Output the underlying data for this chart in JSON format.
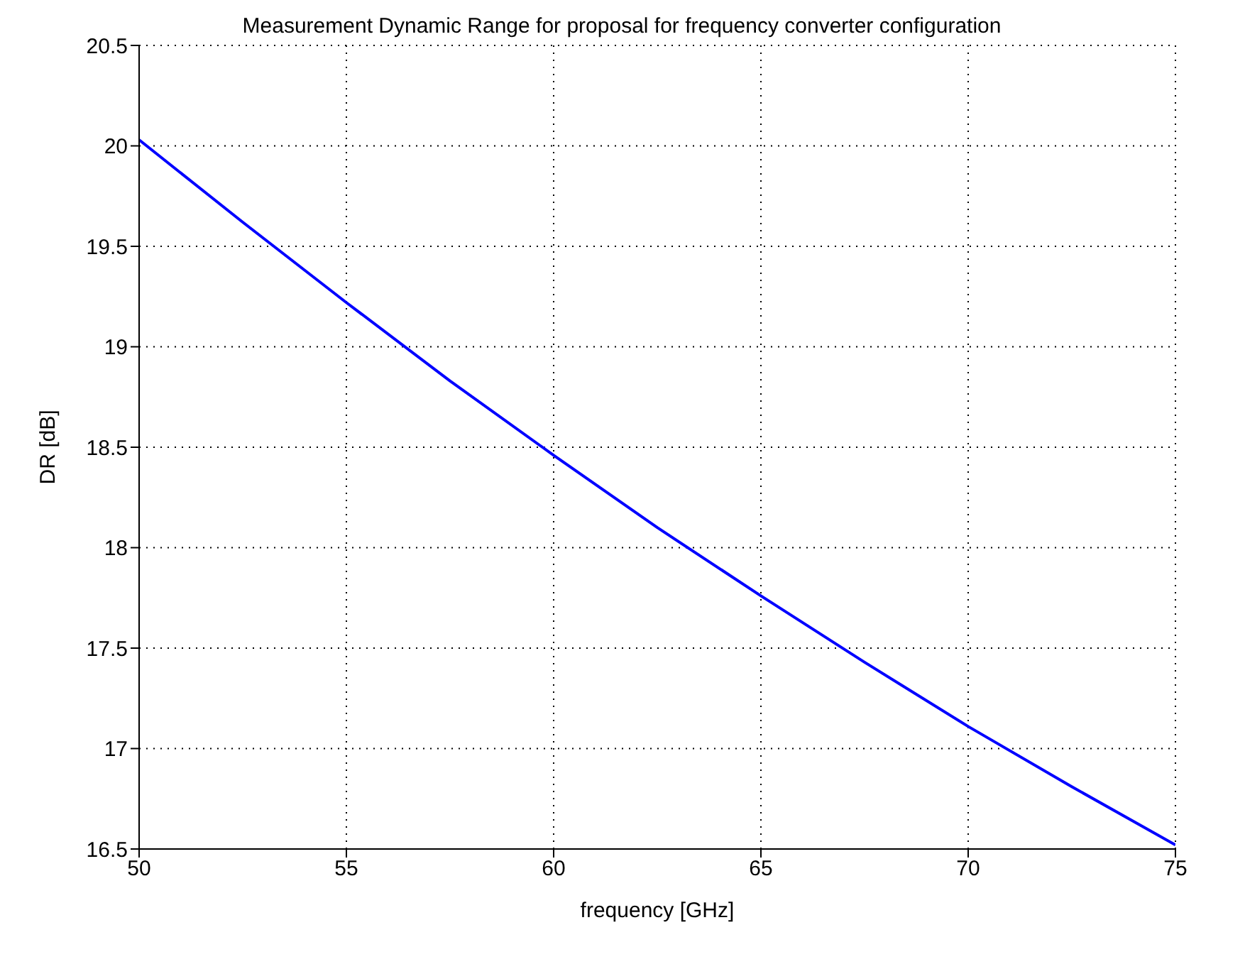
{
  "chart_data": {
    "type": "line",
    "title": "Measurement Dynamic Range for proposal for frequency converter configuration",
    "xlabel": "frequency [GHz]",
    "ylabel": "DR [dB]",
    "x": [
      50,
      52.5,
      55,
      57.5,
      60,
      62.5,
      65,
      67.5,
      70,
      72.5,
      75
    ],
    "series": [
      {
        "color": "#0000ff",
        "values": [
          20.03,
          19.62,
          19.22,
          18.83,
          18.46,
          18.1,
          17.76,
          17.43,
          17.11,
          16.81,
          16.52
        ]
      }
    ],
    "xlim": [
      50,
      75
    ],
    "xticks": [
      50,
      55,
      60,
      65,
      70,
      75
    ],
    "ylim": [
      16.5,
      20.5
    ],
    "yticks": [
      16.5,
      17,
      17.5,
      18,
      18.5,
      19,
      19.5,
      20,
      20.5
    ],
    "grid": true,
    "legend": false,
    "marker": "none",
    "line_style": "solid"
  }
}
